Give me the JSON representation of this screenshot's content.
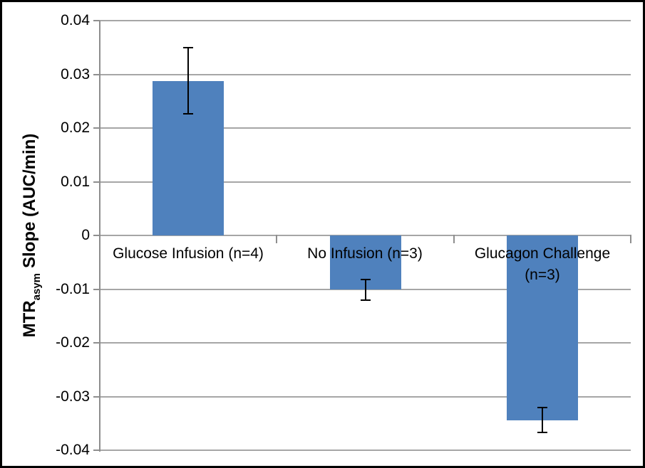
{
  "chart_data": {
    "type": "bar",
    "title": "",
    "xlabel": "",
    "ylabel": "MTR_asym Slope (AUC/min)",
    "ylabel_parts": {
      "main": "MTR",
      "subscript": "asym",
      "rest": "Slope (AUC/min)"
    },
    "categories": [
      "Glucose Infusion (n=4)",
      "No Infusion (n=3)",
      "Glucagon Challenge (n=3)"
    ],
    "category_lines": [
      [
        "Glucose Infusion (n=4)"
      ],
      [
        "No Infusion (n=3)"
      ],
      [
        "Glucagon Challenge",
        "(n=3)"
      ]
    ],
    "values": [
      0.0288,
      -0.0101,
      -0.0344
    ],
    "errors": [
      0.0062,
      0.0019,
      0.0023
    ],
    "ylim": [
      -0.04,
      0.04
    ],
    "ytick_step": 0.01,
    "ytick_labels": [
      "0.04",
      "0.03",
      "0.02",
      "0.01",
      "0",
      "-0.01",
      "-0.02",
      "-0.03",
      "-0.04"
    ],
    "grid": true,
    "legend": "none",
    "colors": {
      "bar": "#4f81bd",
      "gridline": "#a6a6a6",
      "axis": "#8e8e8e",
      "error_bar": "#000000",
      "text": "#000000",
      "frame_border": "#000000"
    }
  }
}
